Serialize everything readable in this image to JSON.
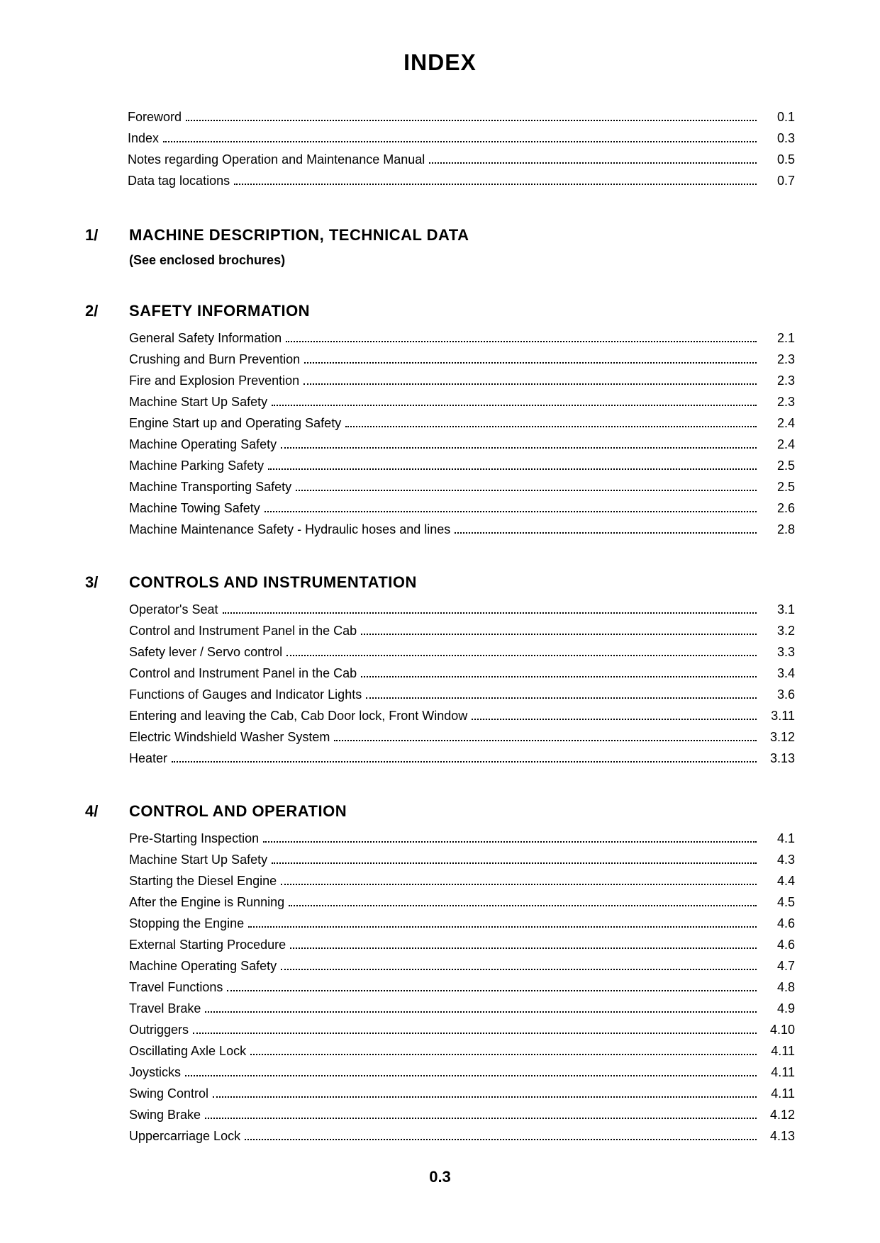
{
  "title": "INDEX",
  "page_number": "0.3",
  "front_entries": [
    {
      "label": "Foreword",
      "page": "0.1"
    },
    {
      "label": "Index",
      "page": "0.3"
    },
    {
      "label": "Notes regarding Operation and Maintenance Manual",
      "page": "0.5"
    },
    {
      "label": "Data tag locations",
      "page": "0.7"
    }
  ],
  "sections": [
    {
      "num": "1/",
      "title": "MACHINE DESCRIPTION, TECHNICAL DATA",
      "note": "(See enclosed brochures)",
      "entries": []
    },
    {
      "num": "2/",
      "title": "SAFETY INFORMATION",
      "entries": [
        {
          "label": "General Safety Information",
          "page": "2.1"
        },
        {
          "label": "Crushing and Burn Prevention",
          "page": "2.3"
        },
        {
          "label": "Fire and Explosion Prevention",
          "page": "2.3"
        },
        {
          "label": "Machine Start Up Safety",
          "page": "2.3"
        },
        {
          "label": "Engine Start up and Operating Safety",
          "page": "2.4"
        },
        {
          "label": "Machine Operating Safety",
          "page": "2.4"
        },
        {
          "label": "Machine Parking Safety",
          "page": "2.5"
        },
        {
          "label": "Machine Transporting Safety",
          "page": "2.5"
        },
        {
          "label": "Machine Towing Safety",
          "page": "2.6"
        },
        {
          "label": "Machine Maintenance Safety - Hydraulic hoses and lines",
          "page": "2.8"
        }
      ]
    },
    {
      "num": "3/",
      "title": "CONTROLS AND INSTRUMENTATION",
      "entries": [
        {
          "label": "Operator's Seat",
          "page": "3.1"
        },
        {
          "label": "Control and Instrument Panel in the Cab",
          "page": "3.2"
        },
        {
          "label": "Safety lever / Servo control",
          "page": "3.3"
        },
        {
          "label": "Control and Instrument Panel in the Cab",
          "page": "3.4"
        },
        {
          "label": "Functions of Gauges and Indicator Lights",
          "page": "3.6"
        },
        {
          "label": "Entering and leaving the Cab, Cab Door lock, Front Window",
          "page": "3.11"
        },
        {
          "label": "Electric Windshield Washer System",
          "page": "3.12"
        },
        {
          "label": "Heater",
          "page": "3.13"
        }
      ]
    },
    {
      "num": "4/",
      "title": "CONTROL AND OPERATION",
      "entries": [
        {
          "label": "Pre-Starting Inspection",
          "page": "4.1"
        },
        {
          "label": "Machine Start Up Safety",
          "page": "4.3"
        },
        {
          "label": "Starting the Diesel Engine",
          "page": "4.4"
        },
        {
          "label": "After the Engine is Running",
          "page": "4.5"
        },
        {
          "label": "Stopping the Engine",
          "page": "4.6"
        },
        {
          "label": "External Starting Procedure",
          "page": "4.6"
        },
        {
          "label": "Machine Operating Safety",
          "page": "4.7"
        },
        {
          "label": "Travel Functions",
          "page": "4.8"
        },
        {
          "label": "Travel Brake",
          "page": "4.9"
        },
        {
          "label": "Outriggers",
          "page": "4.10"
        },
        {
          "label": "Oscillating Axle Lock",
          "page": "4.11"
        },
        {
          "label": "Joysticks",
          "page": "4.11"
        },
        {
          "label": "Swing Control",
          "page": "4.11"
        },
        {
          "label": "Swing Brake",
          "page": "4.12"
        },
        {
          "label": "Uppercarriage Lock",
          "page": "4.13"
        }
      ]
    }
  ]
}
